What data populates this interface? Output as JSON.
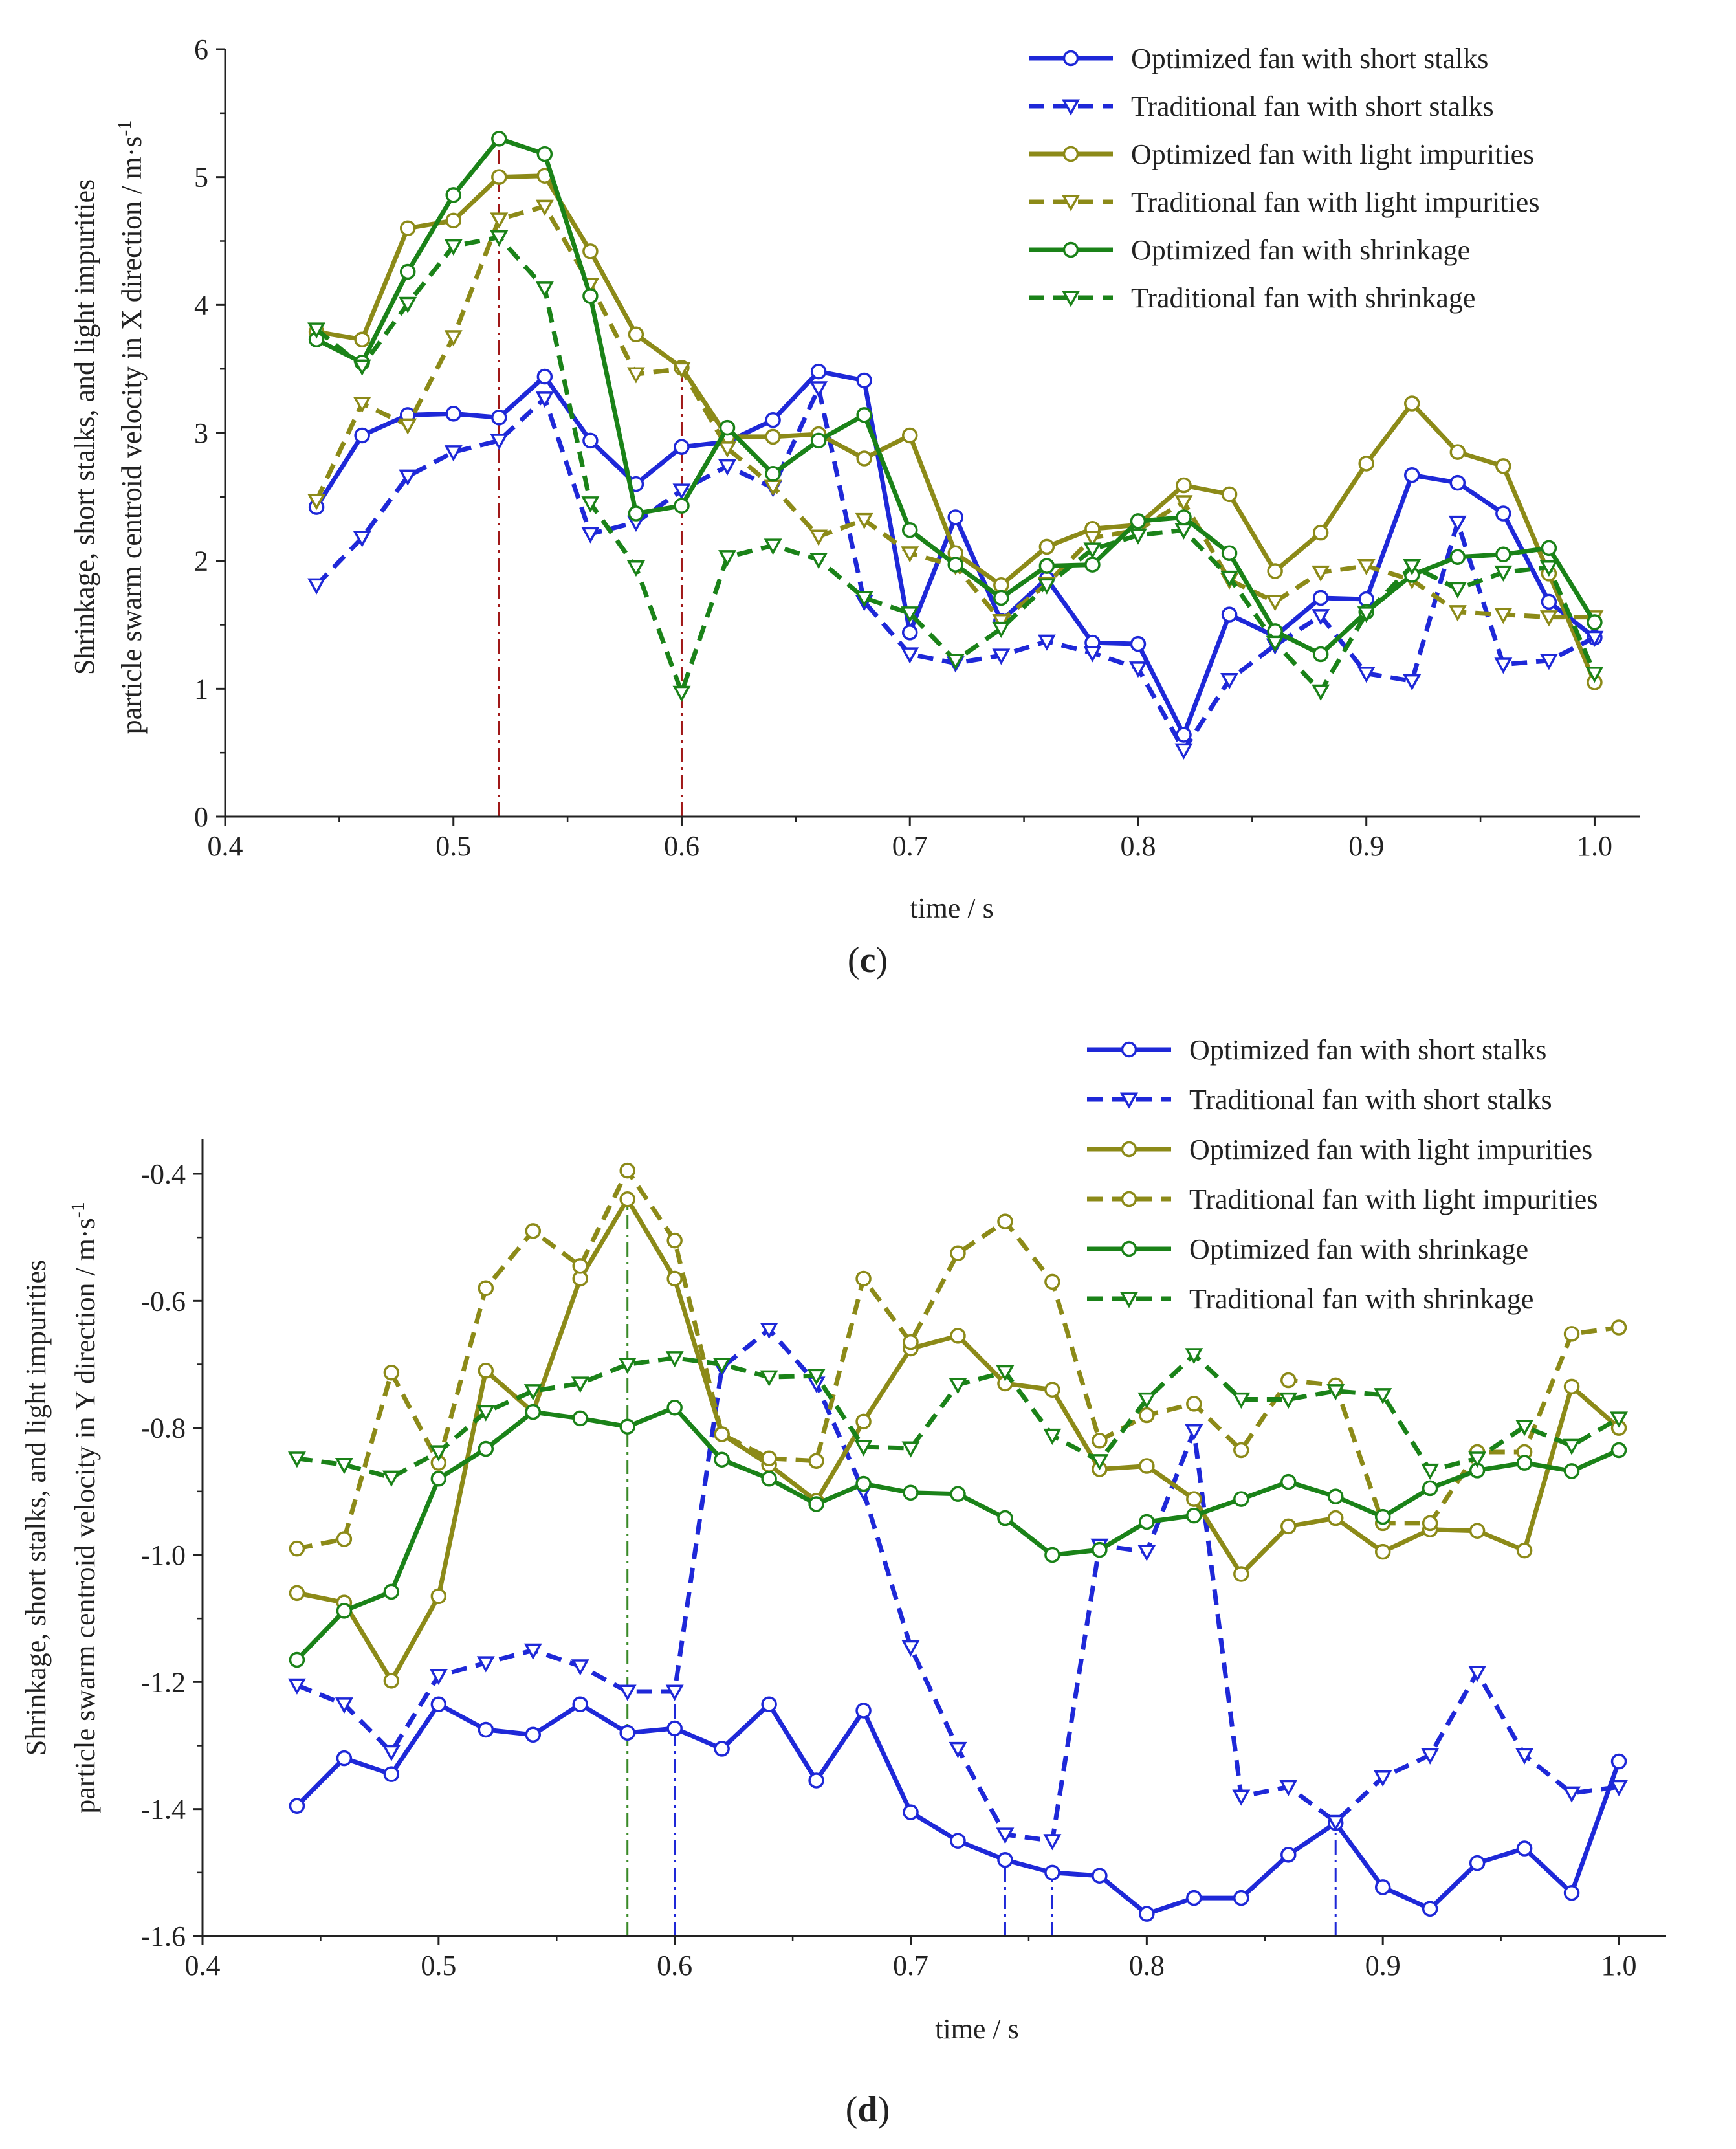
{
  "chart_data": [
    {
      "id": "c",
      "type": "line",
      "panel_label_open": "(",
      "panel_label": "c",
      "panel_label_close": ")",
      "xlabel": "time / s",
      "ylabel_line1": "Shrinkage, short stalks, and light impurities",
      "ylabel_line2": "particle swarm centroid velocity in X direction / m·s",
      "ylabel_superscript": "-1",
      "xlim": [
        0.4,
        1.02
      ],
      "ylim": [
        0,
        6
      ],
      "xticks": [
        0.4,
        0.5,
        0.6,
        0.7,
        0.8,
        0.9,
        1.0
      ],
      "xtick_labels": [
        "0.4",
        "0.5",
        "0.6",
        "0.7",
        "0.8",
        "0.9",
        "1.0"
      ],
      "yticks": [
        0,
        1,
        2,
        3,
        4,
        5,
        6
      ],
      "ytick_labels": [
        "0",
        "1",
        "2",
        "3",
        "4",
        "5",
        "6"
      ],
      "legend_position": "top-right",
      "vlines": [
        {
          "x": 0.52,
          "y": 5.3,
          "color": "#a01818"
        },
        {
          "x": 0.6,
          "y": 3.5,
          "color": "#a01818"
        }
      ],
      "x": [
        0.44,
        0.46,
        0.48,
        0.5,
        0.52,
        0.54,
        0.56,
        0.58,
        0.6,
        0.62,
        0.64,
        0.66,
        0.68,
        0.7,
        0.72,
        0.74,
        0.76,
        0.78,
        0.8,
        0.82,
        0.84,
        0.86,
        0.88,
        0.9,
        0.92,
        0.94,
        0.96,
        0.98,
        1.0
      ],
      "series": [
        {
          "name": "Optimized fan with short stalks",
          "color": "#1e28d8",
          "dash": "solid",
          "marker": "circle",
          "values": [
            2.42,
            2.98,
            3.14,
            3.15,
            3.12,
            3.44,
            2.94,
            2.6,
            2.89,
            2.93,
            3.1,
            3.48,
            3.41,
            1.44,
            2.34,
            1.53,
            1.86,
            1.36,
            1.35,
            0.64,
            1.58,
            1.41,
            1.71,
            1.7,
            2.67,
            2.61,
            2.37,
            1.68,
            1.4
          ]
        },
        {
          "name": "Traditional fan with short stalks",
          "color": "#1e28d8",
          "dash": "dashed",
          "marker": "triangle",
          "values": [
            1.81,
            2.18,
            2.66,
            2.85,
            2.94,
            3.27,
            2.21,
            2.3,
            2.55,
            2.74,
            2.57,
            3.35,
            1.68,
            1.27,
            1.2,
            1.26,
            1.37,
            1.28,
            1.16,
            0.52,
            1.07,
            1.34,
            1.57,
            1.12,
            1.06,
            2.3,
            1.19,
            1.22,
            1.4
          ]
        },
        {
          "name": "Optimized fan with light impurities",
          "color": "#8c8a18",
          "dash": "solid",
          "marker": "circle",
          "values": [
            3.79,
            3.73,
            4.6,
            4.66,
            5.0,
            5.01,
            4.42,
            3.77,
            3.51,
            2.97,
            2.97,
            2.99,
            2.8,
            2.98,
            2.06,
            1.81,
            2.11,
            2.25,
            2.28,
            2.59,
            2.52,
            1.92,
            2.22,
            2.76,
            3.23,
            2.85,
            2.74,
            1.9,
            1.05
          ]
        },
        {
          "name": "Traditional fan with light impurities",
          "color": "#8c8a18",
          "dash": "dashed",
          "marker": "triangle",
          "values": [
            2.47,
            3.23,
            3.06,
            3.75,
            4.67,
            4.77,
            4.16,
            3.46,
            3.5,
            2.88,
            2.58,
            2.19,
            2.32,
            2.06,
            1.96,
            1.53,
            1.82,
            2.18,
            2.24,
            2.46,
            1.85,
            1.68,
            1.91,
            1.96,
            1.85,
            1.6,
            1.58,
            1.56,
            1.56
          ]
        },
        {
          "name": "Optimized fan with shrinkage",
          "color": "#1a8218",
          "dash": "solid",
          "marker": "circle",
          "values": [
            3.73,
            3.55,
            4.26,
            4.86,
            5.3,
            5.18,
            4.07,
            2.37,
            2.43,
            3.04,
            2.68,
            2.94,
            3.14,
            2.24,
            1.97,
            1.71,
            1.96,
            1.97,
            2.31,
            2.34,
            2.06,
            1.45,
            1.27,
            1.6,
            1.89,
            2.03,
            2.05,
            2.1,
            1.52
          ]
        },
        {
          "name": "Traditional fan with shrinkage",
          "color": "#1a8218",
          "dash": "dashed",
          "marker": "triangle",
          "values": [
            3.81,
            3.52,
            4.01,
            4.46,
            4.53,
            4.13,
            2.45,
            1.95,
            0.97,
            2.03,
            2.12,
            2.01,
            1.71,
            1.59,
            1.22,
            1.47,
            1.81,
            2.09,
            2.2,
            2.24,
            1.87,
            1.36,
            0.98,
            1.59,
            1.96,
            1.78,
            1.91,
            1.95,
            1.12
          ]
        }
      ]
    },
    {
      "id": "d",
      "type": "line",
      "panel_label_open": "(",
      "panel_label": "d",
      "panel_label_close": ")",
      "xlabel": "time / s",
      "ylabel_line1": "Shrinkage, short stalks, and light impurities",
      "ylabel_line2": "particle swarm centroid velocity in Y direction / m·s",
      "ylabel_superscript": "-1",
      "xlim": [
        0.4,
        1.02
      ],
      "ylim": [
        -1.6,
        -0.345
      ],
      "xticks": [
        0.4,
        0.5,
        0.6,
        0.7,
        0.8,
        0.9,
        1.0
      ],
      "xtick_labels": [
        "0.4",
        "0.5",
        "0.6",
        "0.7",
        "0.8",
        "0.9",
        "1.0"
      ],
      "yticks": [
        -1.6,
        -1.4,
        -1.2,
        -1.0,
        -0.8,
        -0.6,
        -0.4
      ],
      "ytick_labels": [
        "-1.6",
        "-1.4",
        "-1.2",
        "-1.0",
        "-0.8",
        "-0.6",
        "-0.4"
      ],
      "legend_position": "top-right",
      "vlines": [
        {
          "x": 0.58,
          "y": -0.44,
          "color": "#3a8a28"
        },
        {
          "x": 0.6,
          "y": -1.21,
          "color": "#1e28d8"
        },
        {
          "x": 0.74,
          "y": -1.48,
          "color": "#1e28d8"
        },
        {
          "x": 0.76,
          "y": -1.5,
          "color": "#1e28d8"
        },
        {
          "x": 0.88,
          "y": -1.42,
          "color": "#1e28d8"
        }
      ],
      "x": [
        0.44,
        0.46,
        0.48,
        0.5,
        0.52,
        0.54,
        0.56,
        0.58,
        0.6,
        0.62,
        0.64,
        0.66,
        0.68,
        0.7,
        0.72,
        0.74,
        0.76,
        0.78,
        0.8,
        0.82,
        0.84,
        0.86,
        0.88,
        0.9,
        0.92,
        0.94,
        0.96,
        0.98,
        1.0
      ],
      "series": [
        {
          "name": "Optimized fan with short stalks",
          "color": "#1e28d8",
          "dash": "solid",
          "marker": "circle",
          "values": [
            -1.395,
            -1.32,
            -1.345,
            -1.235,
            -1.275,
            -1.283,
            -1.235,
            -1.28,
            -1.273,
            -1.305,
            -1.235,
            -1.355,
            -1.245,
            -1.405,
            -1.45,
            -1.48,
            -1.5,
            -1.505,
            -1.565,
            -1.54,
            -1.54,
            -1.472,
            -1.422,
            -1.523,
            -1.557,
            -1.485,
            -1.462,
            -1.532,
            -1.325
          ]
        },
        {
          "name": "Traditional fan with short stalks",
          "color": "#1e28d8",
          "dash": "dashed",
          "marker": "triangle",
          "values": [
            -1.205,
            -1.235,
            -1.31,
            -1.19,
            -1.17,
            -1.15,
            -1.175,
            -1.215,
            -1.215,
            -0.705,
            -0.645,
            -0.73,
            -0.9,
            -1.145,
            -1.305,
            -1.44,
            -1.45,
            -0.985,
            -0.995,
            -0.805,
            -1.38,
            -1.365,
            -1.42,
            -1.35,
            -1.315,
            -1.185,
            -1.315,
            -1.375,
            -1.365
          ]
        },
        {
          "name": "Optimized fan with light impurities",
          "color": "#8c8a18",
          "dash": "solid",
          "marker": "circle",
          "values": [
            -1.06,
            -1.075,
            -1.198,
            -1.065,
            -0.71,
            -0.775,
            -0.565,
            -0.44,
            -0.565,
            -0.81,
            -0.858,
            -0.915,
            -0.79,
            -0.675,
            -0.655,
            -0.73,
            -0.74,
            -0.865,
            -0.86,
            -0.912,
            -1.03,
            -0.955,
            -0.942,
            -0.995,
            -0.96,
            -0.962,
            -0.993,
            -0.735,
            -0.8
          ]
        },
        {
          "name": "Traditional fan with light impurities",
          "color": "#8c8a18",
          "dash": "dashed",
          "marker": "circle-open",
          "values": [
            -0.99,
            -0.975,
            -0.713,
            -0.855,
            -0.58,
            -0.49,
            -0.545,
            -0.395,
            -0.505,
            -0.81,
            -0.848,
            -0.852,
            -0.565,
            -0.665,
            -0.525,
            -0.475,
            -0.57,
            -0.82,
            -0.78,
            -0.762,
            -0.835,
            -0.725,
            -0.733,
            -0.95,
            -0.95,
            -0.838,
            -0.838,
            -0.652,
            -0.642
          ]
        },
        {
          "name": "Optimized fan with shrinkage",
          "color": "#1a8218",
          "dash": "solid",
          "marker": "circle",
          "values": [
            -1.165,
            -1.088,
            -1.058,
            -0.88,
            -0.833,
            -0.775,
            -0.785,
            -0.798,
            -0.768,
            -0.85,
            -0.88,
            -0.92,
            -0.888,
            -0.902,
            -0.904,
            -0.942,
            -1.0,
            -0.992,
            -0.948,
            -0.938,
            -0.912,
            -0.885,
            -0.908,
            -0.94,
            -0.895,
            -0.867,
            -0.855,
            -0.868,
            -0.835
          ]
        },
        {
          "name": "Traditional fan with shrinkage",
          "color": "#1a8218",
          "dash": "dashed",
          "marker": "triangle",
          "values": [
            -0.848,
            -0.858,
            -0.878,
            -0.838,
            -0.775,
            -0.742,
            -0.73,
            -0.7,
            -0.69,
            -0.7,
            -0.72,
            -0.718,
            -0.83,
            -0.832,
            -0.732,
            -0.712,
            -0.812,
            -0.852,
            -0.755,
            -0.685,
            -0.755,
            -0.755,
            -0.742,
            -0.748,
            -0.867,
            -0.848,
            -0.798,
            -0.828,
            -0.785
          ]
        }
      ]
    }
  ]
}
